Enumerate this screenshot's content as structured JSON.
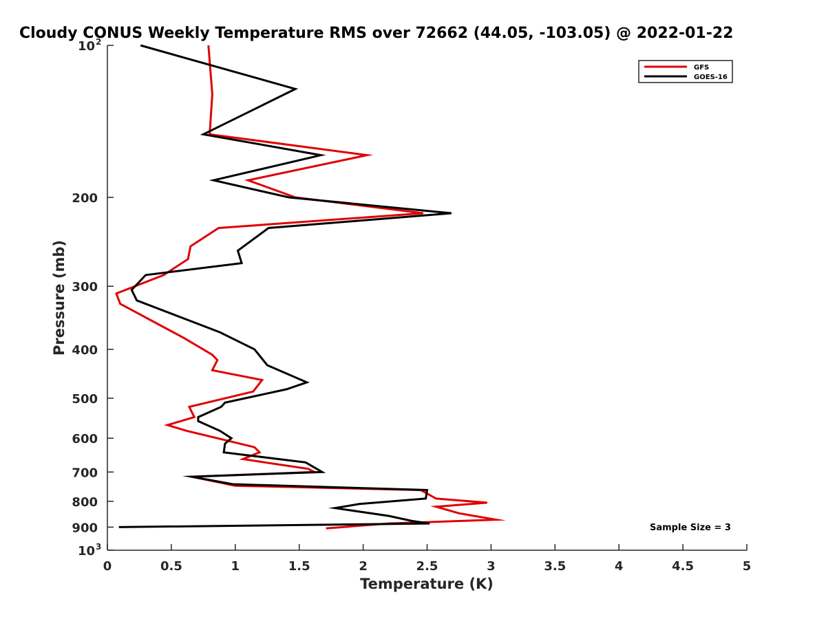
{
  "chart_data": {
    "type": "line",
    "title": "Cloudy CONUS Weekly Temperature RMS over 72662 (44.05, -103.05) @ 2022-01-22",
    "xlabel": "Temperature (K)",
    "ylabel": "Pressure (mb)",
    "xlim": [
      0,
      5
    ],
    "ylim": [
      100,
      1000
    ],
    "y_scale": "log",
    "y_reversed": true,
    "x_ticks": [
      "0",
      "0.5",
      "1",
      "1.5",
      "2",
      "2.5",
      "3",
      "3.5",
      "4",
      "4.5",
      "5"
    ],
    "x_tick_values": [
      0,
      0.5,
      1,
      1.5,
      2,
      2.5,
      3,
      3.5,
      4,
      4.5,
      5
    ],
    "y_ticks": [
      {
        "value": 100,
        "label": "10",
        "exp": "2"
      },
      {
        "value": 200,
        "label": "200",
        "exp": ""
      },
      {
        "value": 300,
        "label": "300",
        "exp": ""
      },
      {
        "value": 400,
        "label": "400",
        "exp": ""
      },
      {
        "value": 500,
        "label": "500",
        "exp": ""
      },
      {
        "value": 600,
        "label": "600",
        "exp": ""
      },
      {
        "value": 700,
        "label": "700",
        "exp": ""
      },
      {
        "value": 800,
        "label": "800",
        "exp": ""
      },
      {
        "value": 900,
        "label": "900",
        "exp": ""
      },
      {
        "value": 1000,
        "label": "10",
        "exp": "3"
      }
    ],
    "grid": false,
    "legend_position": "top-right",
    "annotation": "Sample Size = 3",
    "series": [
      {
        "name": "GFS",
        "color": "#e00000",
        "points": [
          [
            0.79,
            100
          ],
          [
            0.82,
            125
          ],
          [
            0.8,
            150
          ],
          [
            2.03,
            165
          ],
          [
            1.1,
            185
          ],
          [
            1.47,
            200
          ],
          [
            2.47,
            215
          ],
          [
            0.87,
            230
          ],
          [
            0.65,
            250
          ],
          [
            0.63,
            265
          ],
          [
            0.44,
            285
          ],
          [
            0.07,
            310
          ],
          [
            0.1,
            325
          ],
          [
            0.6,
            380
          ],
          [
            0.82,
            410
          ],
          [
            0.86,
            420
          ],
          [
            0.82,
            440
          ],
          [
            1.21,
            460
          ],
          [
            1.14,
            485
          ],
          [
            0.64,
            520
          ],
          [
            0.68,
            545
          ],
          [
            0.47,
            565
          ],
          [
            0.62,
            580
          ],
          [
            1.15,
            625
          ],
          [
            1.19,
            640
          ],
          [
            1.06,
            660
          ],
          [
            1.57,
            690
          ],
          [
            1.62,
            700
          ],
          [
            0.66,
            715
          ],
          [
            1.0,
            745
          ],
          [
            2.45,
            760
          ],
          [
            2.57,
            790
          ],
          [
            2.97,
            805
          ],
          [
            2.57,
            820
          ],
          [
            2.75,
            845
          ],
          [
            3.04,
            870
          ],
          [
            2.2,
            885
          ],
          [
            1.71,
            905
          ]
        ]
      },
      {
        "name": "GOES-16",
        "color": "#000000",
        "points": [
          [
            0.26,
            100
          ],
          [
            1.47,
            122
          ],
          [
            0.75,
            150
          ],
          [
            1.67,
            165
          ],
          [
            0.83,
            185
          ],
          [
            1.42,
            200
          ],
          [
            2.69,
            215
          ],
          [
            1.26,
            230
          ],
          [
            1.02,
            255
          ],
          [
            1.05,
            270
          ],
          [
            0.3,
            285
          ],
          [
            0.19,
            305
          ],
          [
            0.23,
            320
          ],
          [
            0.88,
            370
          ],
          [
            1.15,
            400
          ],
          [
            1.25,
            430
          ],
          [
            1.56,
            465
          ],
          [
            1.4,
            480
          ],
          [
            0.92,
            510
          ],
          [
            0.89,
            520
          ],
          [
            0.71,
            545
          ],
          [
            0.71,
            555
          ],
          [
            0.88,
            580
          ],
          [
            0.97,
            600
          ],
          [
            0.92,
            615
          ],
          [
            0.91,
            640
          ],
          [
            1.55,
            670
          ],
          [
            1.68,
            700
          ],
          [
            0.66,
            715
          ],
          [
            0.98,
            740
          ],
          [
            2.5,
            760
          ],
          [
            2.49,
            790
          ],
          [
            1.97,
            810
          ],
          [
            1.78,
            825
          ],
          [
            2.2,
            855
          ],
          [
            2.38,
            875
          ],
          [
            2.52,
            885
          ],
          [
            0.09,
            900
          ]
        ]
      }
    ]
  }
}
